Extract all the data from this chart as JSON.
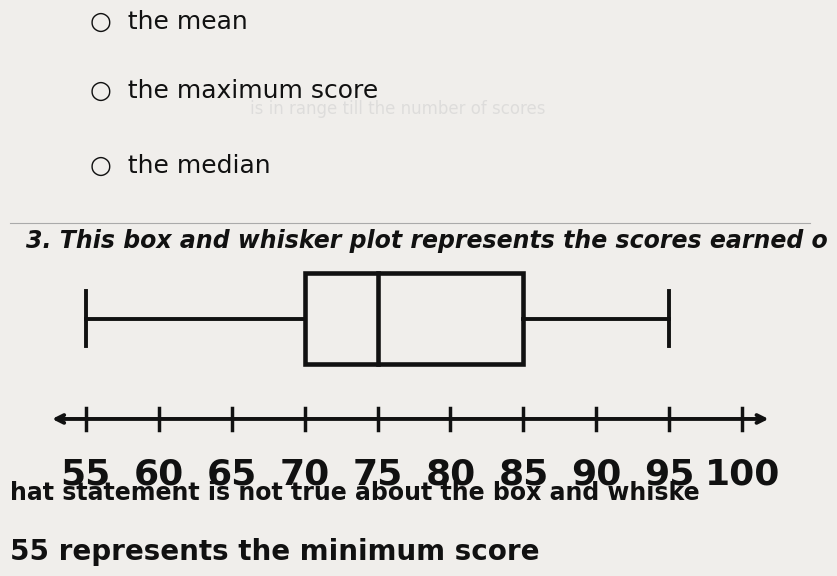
{
  "minimum": 55,
  "q1": 70,
  "median": 75,
  "q3": 85,
  "maximum": 95,
  "xmin": 55,
  "xmax": 100,
  "xticks": [
    55,
    60,
    65,
    70,
    75,
    80,
    85,
    90,
    95,
    100
  ],
  "background_color": "#f0eeeb",
  "box_color": "#111111",
  "text_color": "#111111",
  "top_labels": [
    "the mean",
    "the maximum score",
    "the median"
  ],
  "question_text": "3. This box and whisker plot represents the scores earned o",
  "bottom_text1": "hat statement is not true about the box and whiske",
  "bottom_text2": "55 represents the minimum score",
  "tick_fontsize": 26,
  "label_fontsize": 18,
  "question_fontsize": 17
}
